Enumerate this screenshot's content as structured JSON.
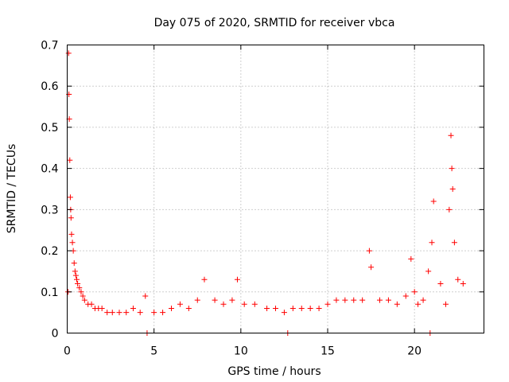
{
  "chart_data": {
    "type": "scatter",
    "title": "Day 075 of 2020, SRMTID for receiver vbca",
    "xlabel": "GPS time / hours",
    "ylabel": "SRMTID / TECUs",
    "xlim": [
      0,
      24
    ],
    "ylim": [
      0,
      0.7
    ],
    "x_ticks": [
      0,
      5,
      10,
      15,
      20
    ],
    "x_tick_labels": [
      "0",
      "5",
      "10",
      "15",
      "20"
    ],
    "y_ticks": [
      0,
      0.1,
      0.2,
      0.3,
      0.4,
      0.5,
      0.6,
      0.7
    ],
    "y_tick_labels": [
      "0",
      "0.1",
      "0.2",
      "0.3",
      "0.4",
      "0.5",
      "0.6",
      "0.7"
    ],
    "grid": true,
    "marker": "+",
    "color": "#ff0000",
    "series": [
      {
        "name": "SRMTID",
        "x": [
          0.05,
          0.08,
          0.1,
          0.12,
          0.15,
          0.18,
          0.2,
          0.22,
          0.25,
          0.3,
          0.35,
          0.4,
          0.45,
          0.5,
          0.55,
          0.6,
          0.7,
          0.8,
          0.9,
          1.0,
          1.2,
          1.4,
          1.6,
          1.8,
          2.0,
          2.3,
          2.6,
          3.0,
          3.4,
          3.8,
          4.2,
          4.5,
          4.6,
          5.0,
          5.5,
          6.0,
          6.5,
          7.0,
          7.5,
          7.9,
          8.5,
          9.0,
          9.5,
          9.8,
          10.2,
          10.8,
          11.5,
          12.0,
          12.5,
          12.7,
          13.0,
          13.5,
          14.0,
          14.5,
          15.0,
          15.5,
          16.0,
          16.5,
          17.0,
          17.4,
          17.5,
          18.0,
          18.5,
          19.0,
          19.5,
          19.8,
          20.0,
          20.2,
          20.5,
          20.8,
          20.9,
          21.0,
          21.1,
          21.5,
          21.8,
          22.0,
          22.1,
          22.15,
          22.2,
          22.3,
          22.5,
          22.8
        ],
        "y": [
          0.1,
          0.68,
          0.58,
          0.52,
          0.42,
          0.33,
          0.3,
          0.28,
          0.24,
          0.22,
          0.2,
          0.17,
          0.15,
          0.14,
          0.13,
          0.12,
          0.11,
          0.1,
          0.09,
          0.08,
          0.07,
          0.07,
          0.06,
          0.06,
          0.06,
          0.05,
          0.05,
          0.05,
          0.05,
          0.06,
          0.05,
          0.09,
          0.0,
          0.05,
          0.05,
          0.06,
          0.07,
          0.06,
          0.08,
          0.13,
          0.08,
          0.07,
          0.08,
          0.13,
          0.07,
          0.07,
          0.06,
          0.06,
          0.05,
          0.0,
          0.06,
          0.06,
          0.06,
          0.06,
          0.07,
          0.08,
          0.08,
          0.08,
          0.08,
          0.2,
          0.16,
          0.08,
          0.08,
          0.07,
          0.09,
          0.18,
          0.1,
          0.07,
          0.08,
          0.15,
          0.0,
          0.22,
          0.32,
          0.12,
          0.07,
          0.3,
          0.48,
          0.4,
          0.35,
          0.22,
          0.13,
          0.12
        ]
      }
    ]
  }
}
